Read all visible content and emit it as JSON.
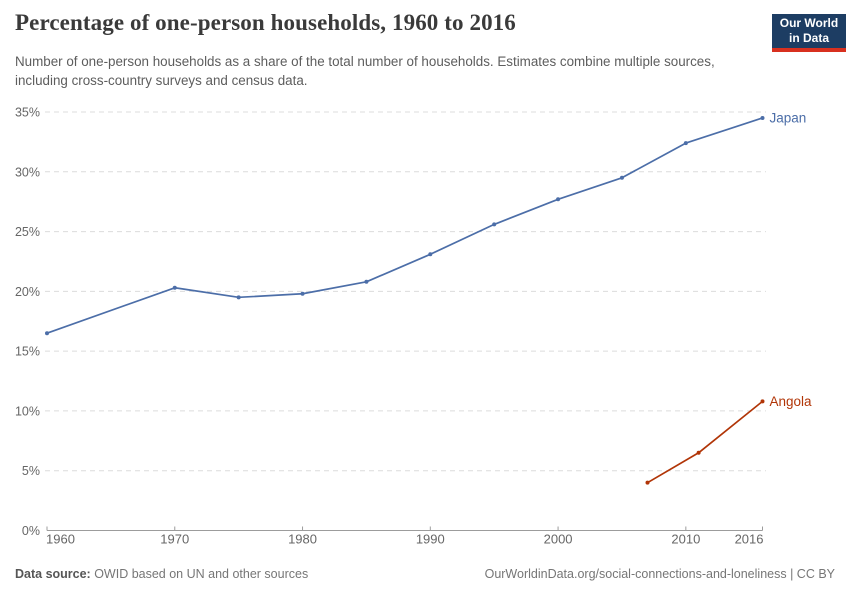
{
  "header": {
    "title": "Percentage of one-person households, 1960 to 2016",
    "subtitle": "Number of one-person households as a share of the total number of households. Estimates combine multiple sources, including cross-country surveys and census data."
  },
  "logo": {
    "line1": "Our World",
    "line2": "in Data",
    "bg_color": "#1d3d63",
    "accent_color": "#d8301f"
  },
  "chart_data": {
    "type": "line",
    "title": "Percentage of one-person households, 1960 to 2016",
    "xlabel": "",
    "ylabel": "",
    "xlim": [
      1960,
      2016
    ],
    "ylim": [
      0,
      35
    ],
    "x_ticks": [
      1960,
      1970,
      1980,
      1990,
      2000,
      2010,
      2016
    ],
    "y_ticks": [
      0,
      5,
      10,
      15,
      20,
      25,
      30,
      35
    ],
    "y_tick_suffix": "%",
    "grid": "horizontal-dashed",
    "legend_position": "line-end-labels",
    "series": [
      {
        "name": "Japan",
        "color": "#4c6ea8",
        "x": [
          1960,
          1970,
          1975,
          1980,
          1985,
          1990,
          1995,
          2000,
          2005,
          2010,
          2016
        ],
        "values": [
          16.5,
          20.3,
          19.5,
          19.8,
          20.8,
          23.1,
          25.6,
          27.7,
          29.5,
          32.4,
          34.5
        ]
      },
      {
        "name": "Angola",
        "color": "#b13507",
        "x": [
          2007,
          2011,
          2016
        ],
        "values": [
          4.0,
          6.5,
          10.8
        ]
      }
    ]
  },
  "footer": {
    "source_label": "Data source:",
    "source_text": " OWID based on UN and other sources",
    "credit": "OurWorldinData.org/social-connections-and-loneliness | CC BY"
  }
}
